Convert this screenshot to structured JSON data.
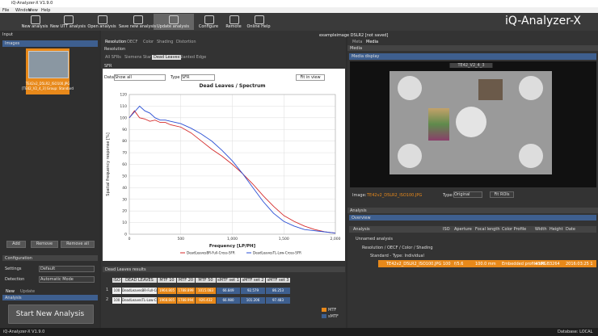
{
  "window": {
    "title": "iQ-Analyzer-X V1.9.0",
    "menu": [
      "File",
      "Window",
      "View",
      "Help"
    ]
  },
  "toolbar": {
    "buttons": [
      "New analysis",
      "New UTT analysis",
      "Open analysis",
      "Save new analysis",
      "Update analysis",
      "Configure",
      "Remote",
      "Online Help"
    ],
    "brand": "iQ-Analyzer-X"
  },
  "input_panel": {
    "title": "Input",
    "images_header": "Images",
    "image_name": "TE42v2_D5LR2_ISO100.JPG",
    "image_group": "[TE42_V2_4_3] Group: Standard",
    "buttons": [
      "Add",
      "Remove",
      "Remove all"
    ],
    "configuration_header": "Configuration",
    "settings_label": "Settings",
    "settings_value": "Default",
    "detection_label": "Detection",
    "detection_value": "Automatic Mode",
    "tabs": [
      "New",
      "Update"
    ],
    "analysis_header": "Analysis",
    "start_button": "Start New Analysis"
  },
  "center_panel": {
    "tabs": [
      "Resolution",
      "OECF",
      "Color",
      "Shading",
      "Distortion"
    ],
    "document_title": "exampleimage DSLR2  [not saved]",
    "section": "Resolution",
    "subtabs": [
      "All SFRs",
      "Siemens Star",
      "Dead Leaves",
      "Slanted Edge"
    ],
    "subsection": "SFR",
    "data_label": "Data",
    "data_value": "Show all",
    "type_label": "Type",
    "type_value": "SFR",
    "fit_button": "Fit in view"
  },
  "chart_data": {
    "type": "line",
    "title": "Dead Leaves / Spectrum",
    "x_label": "Frequency [LP/PH]",
    "y_label": "Spatial frequency response [%]",
    "x": [
      0,
      50,
      100,
      150,
      200,
      250,
      300,
      350,
      400,
      500,
      600,
      700,
      800,
      900,
      1000,
      1100,
      1200,
      1300,
      1400,
      1500,
      1600,
      1700,
      1800,
      1900,
      2000
    ],
    "series": [
      {
        "name": "DeadLeavesBR-Full-Cross-SFR",
        "color": "#d42a2a",
        "values": [
          100,
          106,
          100,
          99,
          97,
          98,
          96,
          96,
          94,
          92,
          87,
          80,
          73,
          67,
          60,
          52,
          43,
          33,
          24,
          16,
          11,
          7,
          4,
          2,
          1
        ]
      },
      {
        "name": "DeadLeavesTL-Low-Cross-SFR",
        "color": "#2a4fd4",
        "values": [
          100,
          105,
          110,
          106,
          104,
          100,
          98,
          98,
          97,
          95,
          91,
          86,
          80,
          72,
          63,
          52,
          40,
          28,
          18,
          11,
          7,
          4,
          3,
          2,
          1
        ]
      }
    ],
    "xlim": [
      0,
      2000
    ],
    "ylim": [
      0,
      120
    ],
    "xticks": [
      0,
      {
        "value": 500,
        "label": "500"
      },
      {
        "value": 1000,
        "label": "1,000"
      },
      {
        "value": 1500,
        "label": "1,500"
      },
      {
        "value": 2000,
        "label": "2,000"
      }
    ],
    "yticks": [
      0,
      10,
      20,
      30,
      40,
      50,
      60,
      70,
      80,
      90,
      100,
      110,
      120
    ],
    "grid": true,
    "legend": "bottom"
  },
  "results": {
    "title": "Dead Leaves results",
    "columns": [
      "ISO",
      "DEAD LEAVES",
      "MTF 10",
      "MTF 20",
      "MTF 50",
      "sMTF set 1",
      "sMTF set 2",
      "sMTF set 3"
    ],
    "rows": [
      [
        "1",
        "100",
        "DeadLeavesBR-Full-Cross",
        "1964.805",
        "1788.899",
        "1015.083",
        "66.849",
        "92.579",
        "86.253"
      ],
      [
        "2",
        "100",
        "DeadLeavesTL-Low-Cross",
        "1968.805",
        "1788.994",
        "926.432",
        "66.980",
        "101.206",
        "97.483"
      ]
    ],
    "legend": [
      "MTF",
      "sMTF"
    ]
  },
  "media_panel": {
    "title": "Media",
    "tabs": [
      "Meta",
      "Media"
    ],
    "display_header": "Media display",
    "chart_name": "TE42_V2_4_3",
    "image_label": "Image:",
    "image_name": "TE42v2_D5LR2_ISO100.JPG",
    "type_label": "Type:",
    "type_value": "Original",
    "fit_button": "Fit ROIs"
  },
  "analysis_panel": {
    "title": "Analysis",
    "overview": "Overview",
    "columns": [
      "Analysis",
      "ISO",
      "Aperture",
      "Focal length",
      "Color Profile",
      "Width",
      "Height",
      "Date"
    ],
    "tree": [
      "Unnamed analysis",
      "Resolution / OECF / Color / Shading",
      "Standard - Type: Individual"
    ],
    "row": [
      "TE42v2_D5LR2_ISO100.JPG",
      "100",
      "f/5.6",
      "100.0 mm",
      "Embedded profile sRGB",
      "4896",
      "3264",
      "2016:03:25 1"
    ]
  },
  "status_bar": {
    "version": "iQ-Analyzer-X V1.9.0",
    "database": "Database: LOCAL"
  }
}
